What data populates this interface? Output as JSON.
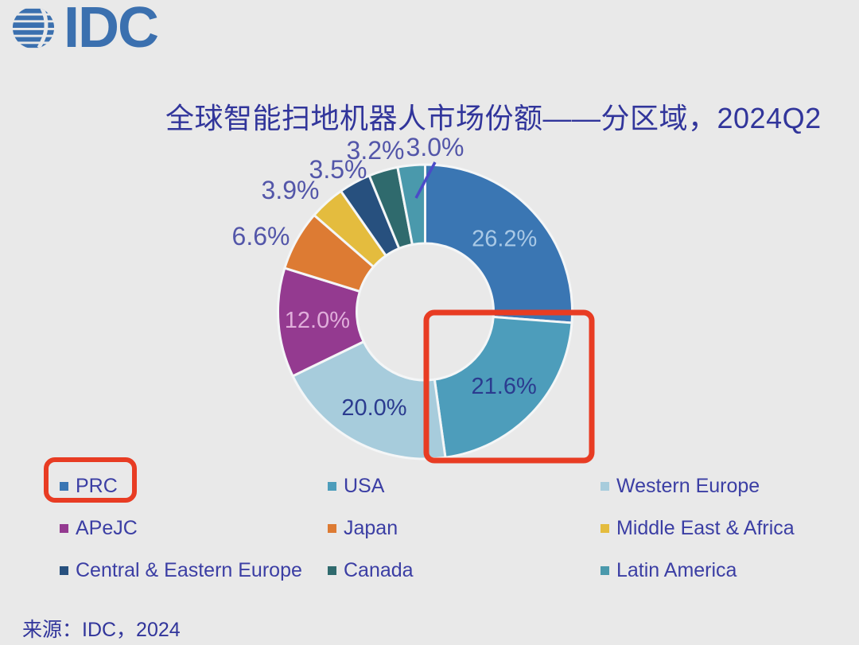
{
  "logo": {
    "text": "IDC"
  },
  "title": "全球智能扫地机器人市场份额——分区域，2024Q2",
  "source": "来源：IDC，2024",
  "accent_colors": {
    "highlight_red": "#e83c23",
    "leader_line_blue": "#4b4bc8",
    "slice_gap": "#f4f6f7"
  },
  "chart_data": {
    "type": "pie",
    "donut": true,
    "title": "全球智能扫地机器人市场份额——分区域，2024Q2",
    "unit": "%",
    "start_angle_deg": 0,
    "direction": "clockwise",
    "legend_position": "bottom",
    "legend_columns": 3,
    "series": [
      {
        "name": "PRC",
        "value": 26.2,
        "label": "26.2%",
        "color": "#3a76b3",
        "label_color": "#a9c9e6",
        "label_pos": "inside"
      },
      {
        "name": "USA",
        "value": 21.6,
        "label": "21.6%",
        "color": "#4d9dbb",
        "label_color": "#2b3b8f",
        "label_pos": "inside"
      },
      {
        "name": "Western Europe",
        "value": 20.0,
        "label": "20.0%",
        "color": "#a7ccdc",
        "label_color": "#2b3b8f",
        "label_pos": "inside"
      },
      {
        "name": "APeJC",
        "value": 12.0,
        "label": "12.0%",
        "color": "#943a90",
        "label_color": "#e0aedb",
        "label_pos": "inside"
      },
      {
        "name": "Japan",
        "value": 6.6,
        "label": "6.6%",
        "color": "#dd7b33",
        "label_color": "#5356a9",
        "label_pos": "outside"
      },
      {
        "name": "Middle East & Africa",
        "value": 3.9,
        "label": "3.9%",
        "color": "#e4bc3e",
        "label_color": "#5356a9",
        "label_pos": "outside"
      },
      {
        "name": "Central & Eastern Europe",
        "value": 3.5,
        "label": "3.5%",
        "color": "#27507e",
        "label_color": "#5356a9",
        "label_pos": "outside"
      },
      {
        "name": "Canada",
        "value": 3.2,
        "label": "3.2%",
        "color": "#2f6a6d",
        "label_color": "#5356a9",
        "label_pos": "outside"
      },
      {
        "name": "Latin America",
        "value": 3.0,
        "label": "3.0%",
        "color": "#4a99ac",
        "label_color": "#5356a9",
        "label_pos": "outside"
      }
    ],
    "annotations": [
      {
        "type": "highlight-box",
        "target": "USA slice (21.6%)"
      },
      {
        "type": "highlight-box",
        "target": "PRC legend item"
      }
    ]
  }
}
